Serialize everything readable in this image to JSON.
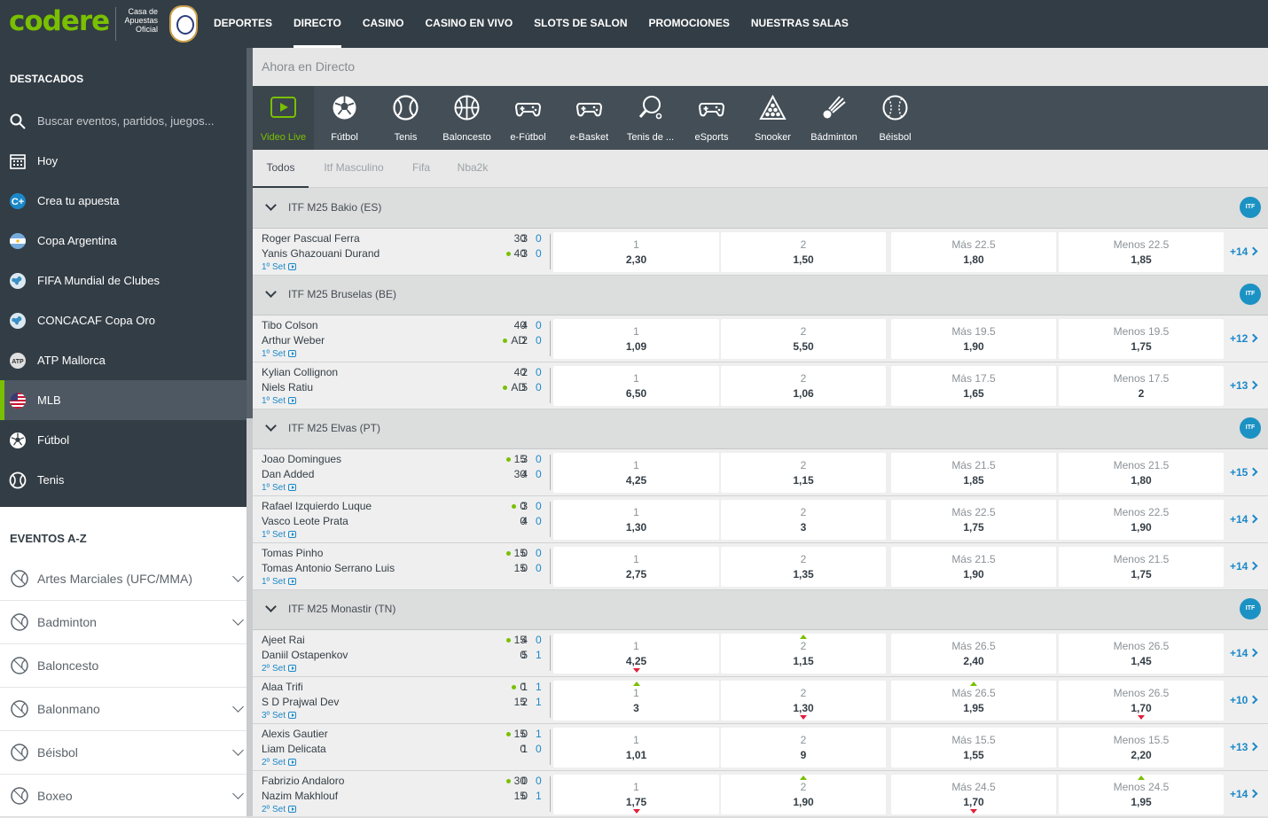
{
  "brand": {
    "logo": "codere",
    "sub": "Casa de Apuestas Oficial",
    "crest": "real-madrid-crest"
  },
  "nav": [
    "DEPORTES",
    "DIRECTO",
    "CASINO",
    "CASINO EN VIVO",
    "SLOTS DE SALON",
    "PROMOCIONES",
    "NUESTRAS SALAS"
  ],
  "nav_active": "DIRECTO",
  "sidebar": {
    "title": "DESTACADOS",
    "search_placeholder": "Buscar eventos, partidos, juegos...",
    "items": [
      {
        "label": "Hoy",
        "icon": "calendar-icon"
      },
      {
        "label": "Crea tu apuesta",
        "icon": "create-bet-icon"
      },
      {
        "label": "Copa Argentina",
        "icon": "argentina-flag-icon"
      },
      {
        "label": "FIFA Mundial de Clubes",
        "icon": "globe-icon"
      },
      {
        "label": "CONCACAF Copa Oro",
        "icon": "globe-icon"
      },
      {
        "label": "ATP Mallorca",
        "icon": "atp-icon"
      },
      {
        "label": "MLB",
        "icon": "usa-flag-icon"
      },
      {
        "label": "Fútbol",
        "icon": "soccer-ball-icon"
      },
      {
        "label": "Tenis",
        "icon": "tennis-ball-icon"
      }
    ],
    "active": "MLB"
  },
  "az": {
    "title": "EVENTOS A-Z",
    "items": [
      {
        "label": "Artes Marciales (UFC/MMA)",
        "icon": "mma-icon"
      },
      {
        "label": "Badminton",
        "icon": "shuttlecock-icon"
      },
      {
        "label": "Baloncesto",
        "icon": "basketball-icon"
      },
      {
        "label": "Balonmano",
        "icon": "handball-icon"
      },
      {
        "label": "Béisbol",
        "icon": "baseball-icon"
      },
      {
        "label": "Boxeo",
        "icon": "boxing-icon"
      }
    ]
  },
  "main": {
    "header": "Ahora en Directo",
    "sports": [
      {
        "label": "Video Live",
        "icon": "play-icon"
      },
      {
        "label": "Fútbol",
        "icon": "soccer-ball-icon"
      },
      {
        "label": "Tenis",
        "icon": "tennis-ball-icon"
      },
      {
        "label": "Baloncesto",
        "icon": "basketball-icon"
      },
      {
        "label": "e-Fútbol",
        "icon": "gamepad-icon"
      },
      {
        "label": "e-Basket",
        "icon": "gamepad-icon"
      },
      {
        "label": "Tenis de ...",
        "icon": "ping-pong-icon"
      },
      {
        "label": "eSports",
        "icon": "gamepad-icon"
      },
      {
        "label": "Snooker",
        "icon": "snooker-icon"
      },
      {
        "label": "Bádminton",
        "icon": "shuttlecock-icon"
      },
      {
        "label": "Béisbol",
        "icon": "baseball-icon"
      }
    ],
    "tabs": [
      "Todos",
      "Itf Masculino",
      "Fifa",
      "Nba2k"
    ],
    "leagues": [
      {
        "name": "ITF M25 Bakio (ES)",
        "matches": [
          {
            "p1": "Roger Pascual Ferra",
            "p2": "Yanis Ghazouani Durand",
            "set": "1º Set",
            "s1": [
              "30",
              "3"
            ],
            "s2": [
              "40",
              "3"
            ],
            "b": [
              "0",
              "0"
            ],
            "serve": 2,
            "o1": "2,30",
            "o2": "1,50",
            "ol": "Más 22.5",
            "ov": "1,80",
            "ul": "Menos 22.5",
            "uv": "1,85",
            "more": "+14"
          }
        ]
      },
      {
        "name": "ITF M25 Bruselas (BE)",
        "matches": [
          {
            "p1": "Tibo Colson",
            "p2": "Arthur Weber",
            "set": "1º Set",
            "s1": [
              "40",
              "4"
            ],
            "s2": [
              "AD",
              "2"
            ],
            "b": [
              "0",
              "0"
            ],
            "serve": 2,
            "o1": "1,09",
            "o2": "5,50",
            "ol": "Más 19.5",
            "ov": "1,90",
            "ul": "Menos 19.5",
            "uv": "1,75",
            "more": "+12"
          },
          {
            "p1": "Kylian Collignon",
            "p2": "Niels Ratiu",
            "set": "1º Set",
            "s1": [
              "40",
              "2"
            ],
            "s2": [
              "AD",
              "5"
            ],
            "b": [
              "0",
              "0"
            ],
            "serve": 2,
            "o1": "6,50",
            "o2": "1,06",
            "ol": "Más 17.5",
            "ov": "1,65",
            "ul": "Menos 17.5",
            "uv": "2",
            "more": "+13"
          }
        ]
      },
      {
        "name": "ITF M25 Elvas (PT)",
        "matches": [
          {
            "p1": "Joao Domingues",
            "p2": "Dan Added",
            "set": "1º Set",
            "s1": [
              "15",
              "3"
            ],
            "s2": [
              "30",
              "4"
            ],
            "b": [
              "0",
              "0"
            ],
            "serve": 1,
            "o1": "4,25",
            "o2": "1,15",
            "ol": "Más 21.5",
            "ov": "1,85",
            "ul": "Menos 21.5",
            "uv": "1,80",
            "more": "+15"
          },
          {
            "p1": "Rafael Izquierdo Luque",
            "p2": "Vasco Leote Prata",
            "set": "1º Set",
            "s1": [
              "0",
              "3"
            ],
            "s2": [
              "0",
              "4"
            ],
            "b": [
              "0",
              "0"
            ],
            "serve": 1,
            "o1": "1,30",
            "o2": "3",
            "ol": "Más 22.5",
            "ov": "1,75",
            "ul": "Menos 22.5",
            "uv": "1,90",
            "more": "+14"
          },
          {
            "p1": "Tomas Pinho",
            "p2": "Tomas Antonio Serrano Luis",
            "set": "1º Set",
            "s1": [
              "15",
              "0"
            ],
            "s2": [
              "15",
              "0"
            ],
            "b": [
              "0",
              "0"
            ],
            "serve": 1,
            "o1": "2,75",
            "o2": "1,35",
            "ol": "Más 21.5",
            "ov": "1,90",
            "ul": "Menos 21.5",
            "uv": "1,75",
            "more": "+14"
          }
        ]
      },
      {
        "name": "ITF M25 Monastir (TN)",
        "matches": [
          {
            "p1": "Ajeet Rai",
            "p2": "Daniil Ostapenkov",
            "set": "2º Set",
            "s1": [
              "15",
              "4"
            ],
            "s2": [
              "0",
              "5"
            ],
            "b": [
              "0",
              "1"
            ],
            "serve": 1,
            "o1": "4,25",
            "o2": "1,15",
            "ol": "Más 26.5",
            "ov": "2,40",
            "ul": "Menos 26.5",
            "uv": "1,45",
            "more": "+14",
            "t1": "down",
            "t2": "up"
          },
          {
            "p1": "Alaa Trifi",
            "p2": "S D Prajwal Dev",
            "set": "3º Set",
            "s1": [
              "0",
              "1"
            ],
            "s2": [
              "15",
              "2"
            ],
            "b": [
              "1",
              "1"
            ],
            "serve": 1,
            "o1": "3",
            "o2": "1,30",
            "ol": "Más 26.5",
            "ov": "1,95",
            "ul": "Menos 26.5",
            "uv": "1,70",
            "more": "+10",
            "t1": "up",
            "t2": "down",
            "to": "up",
            "tu": "down"
          },
          {
            "p1": "Alexis Gautier",
            "p2": "Liam Delicata",
            "set": "2º Set",
            "s1": [
              "15",
              "0"
            ],
            "s2": [
              "0",
              "1"
            ],
            "b": [
              "1",
              "0"
            ],
            "serve": 1,
            "o1": "1,01",
            "o2": "9",
            "ol": "Más 15.5",
            "ov": "1,55",
            "ul": "Menos 15.5",
            "uv": "2,20",
            "more": "+13"
          },
          {
            "p1": "Fabrizio Andaloro",
            "p2": "Nazim Makhlouf",
            "set": "2º Set",
            "s1": [
              "30",
              "0"
            ],
            "s2": [
              "15",
              "0"
            ],
            "b": [
              "0",
              "1"
            ],
            "serve": 1,
            "o1": "1,75",
            "o2": "1,90",
            "ol": "Más 24.5",
            "ov": "1,70",
            "ul": "Menos 24.5",
            "uv": "1,95",
            "more": "+14",
            "t1": "down",
            "t2": "up",
            "to": "down",
            "tu": "up"
          }
        ]
      }
    ]
  },
  "colors": {
    "brand_green": "#79c000",
    "nav_bg": "#333d45",
    "link_blue": "#1b88c9",
    "itf_badge": "#1b92c3"
  }
}
